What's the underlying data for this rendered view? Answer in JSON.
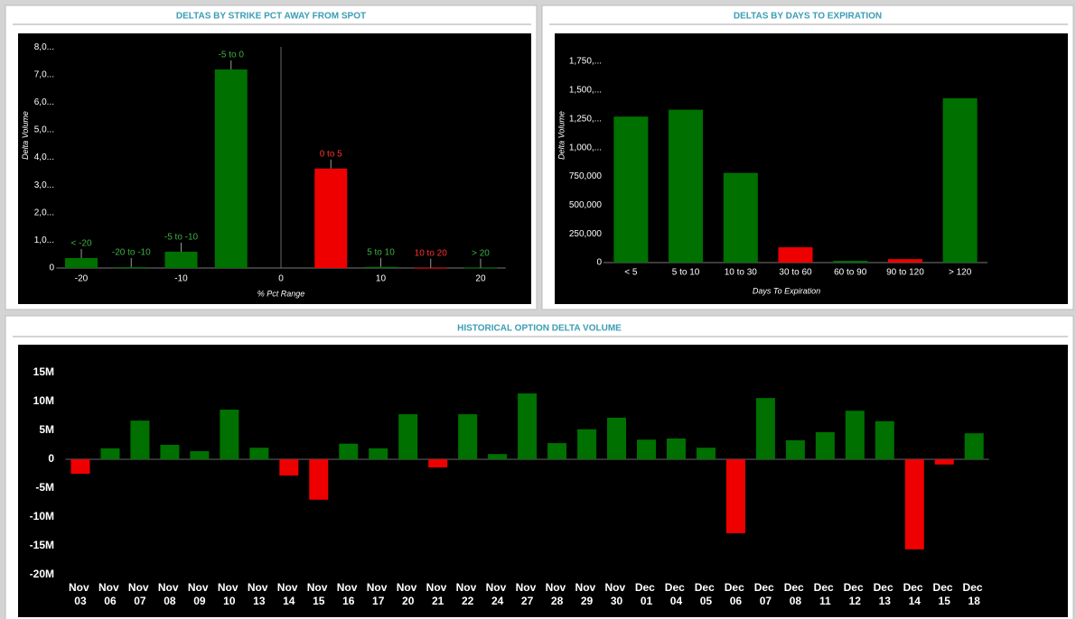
{
  "chart_data": [
    {
      "type": "bar",
      "title": "DELTAS BY STRIKE PCT AWAY FROM SPOT",
      "ylabel": "Delta Volume",
      "xlabel": "% Pct Range",
      "categories": [
        "< -20",
        "-20 to -10",
        "-5 to -10",
        "-5 to 0",
        "0 to 5",
        "5 to 10",
        "10 to 20",
        "> 20"
      ],
      "x": [
        -20,
        -15,
        -10,
        -5,
        5,
        10,
        15,
        20
      ],
      "values": [
        360000,
        30000,
        590000,
        7190000,
        3600000,
        40000,
        10000,
        10000
      ],
      "colors": [
        "#007000",
        "#007000",
        "#007000",
        "#007000",
        "#ee0000",
        "#007000",
        "#ee0000",
        "#007000"
      ],
      "xlim": [
        -22.5,
        22.5
      ],
      "xticks": [
        -20,
        -10,
        0,
        10,
        20
      ],
      "ylim": [
        0,
        8300000
      ],
      "yticks": [
        0,
        {
          "value": 1000000,
          "label": "1,0..."
        },
        {
          "value": 2000000,
          "label": "2,0..."
        },
        {
          "value": 3000000,
          "label": "3,0..."
        },
        {
          "value": 4000000,
          "label": "4,0..."
        },
        {
          "value": 5000000,
          "label": "5,0..."
        },
        {
          "value": 6000000,
          "label": "6,0..."
        },
        {
          "value": 7000000,
          "label": "7,0..."
        },
        {
          "value": 8000000,
          "label": "8,0..."
        }
      ]
    },
    {
      "type": "bar",
      "title": "DELTAS BY DAYS TO EXPIRATION",
      "ylabel": "Delta Volume",
      "xlabel": "Days To Expiration",
      "categories": [
        "< 5",
        "5 to 10",
        "10 to 30",
        "30 to 60",
        "60 to 90",
        "90 to 120",
        "> 120"
      ],
      "values": [
        1270000,
        1330000,
        780000,
        133000,
        15000,
        30000,
        1430000
      ],
      "colors": [
        "#007000",
        "#007000",
        "#007000",
        "#ee0000",
        "#007000",
        "#ee0000",
        "#007000"
      ],
      "ylim": [
        0,
        1900000
      ],
      "yticks": [
        0,
        {
          "value": 250000,
          "label": "250,000"
        },
        {
          "value": 500000,
          "label": "500,000"
        },
        {
          "value": 750000,
          "label": "750,000"
        },
        {
          "value": 1000000,
          "label": "1,000,..."
        },
        {
          "value": 1250000,
          "label": "1,250,..."
        },
        {
          "value": 1500000,
          "label": "1,500,..."
        },
        {
          "value": 1750000,
          "label": "1,750,..."
        }
      ]
    },
    {
      "type": "bar",
      "title": "HISTORICAL OPTION DELTA VOLUME",
      "categories": [
        "Nov 03",
        "Nov 06",
        "Nov 07",
        "Nov 08",
        "Nov 09",
        "Nov 10",
        "Nov 13",
        "Nov 14",
        "Nov 15",
        "Nov 16",
        "Nov 17",
        "Nov 20",
        "Nov 21",
        "Nov 22",
        "Nov 24",
        "Nov 27",
        "Nov 28",
        "Nov 29",
        "Nov 30",
        "Dec 01",
        "Dec 04",
        "Dec 05",
        "Dec 06",
        "Dec 07",
        "Dec 08",
        "Dec 11",
        "Dec 12",
        "Dec 13",
        "Dec 14",
        "Dec 15",
        "Dec 18"
      ],
      "values": [
        -2500000,
        1900000,
        6700000,
        2500000,
        1400000,
        8600000,
        2000000,
        -2800000,
        -7000000,
        2700000,
        1900000,
        7800000,
        -1400000,
        7800000,
        900000,
        11400000,
        2800000,
        5200000,
        7200000,
        3400000,
        3600000,
        2000000,
        -12800000,
        10600000,
        3300000,
        4700000,
        8400000,
        6600000,
        -15600000,
        -900000,
        4500000
      ],
      "colors": [
        "#ee0000",
        "#007000",
        "#007000",
        "#007000",
        "#007000",
        "#007000",
        "#007000",
        "#ee0000",
        "#ee0000",
        "#007000",
        "#007000",
        "#007000",
        "#ee0000",
        "#007000",
        "#007000",
        "#007000",
        "#007000",
        "#007000",
        "#007000",
        "#007000",
        "#007000",
        "#007000",
        "#ee0000",
        "#007000",
        "#007000",
        "#007000",
        "#007000",
        "#007000",
        "#ee0000",
        "#ee0000",
        "#007000"
      ],
      "ylim": [
        -21000000,
        19500000
      ],
      "yticks": [
        {
          "value": -20000000,
          "label": "-20M"
        },
        {
          "value": -15000000,
          "label": "-15M"
        },
        {
          "value": -10000000,
          "label": "-10M"
        },
        {
          "value": -5000000,
          "label": "-5M"
        },
        0,
        {
          "value": 5000000,
          "label": "5M"
        },
        {
          "value": 10000000,
          "label": "10M"
        },
        {
          "value": 15000000,
          "label": "15M"
        }
      ]
    }
  ]
}
